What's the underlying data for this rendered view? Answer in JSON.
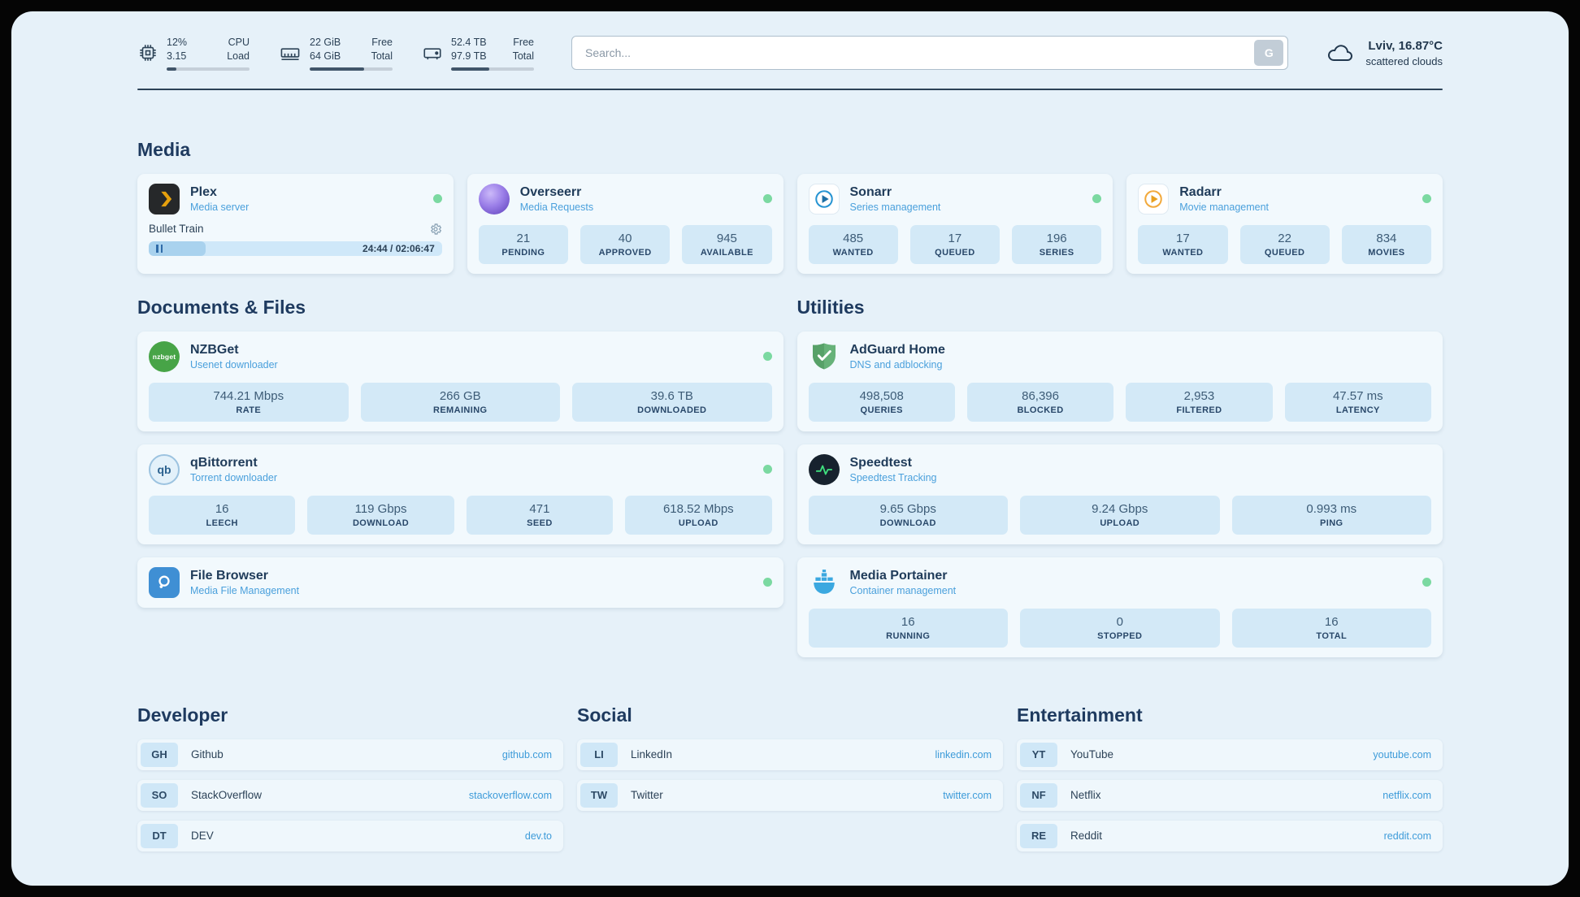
{
  "topbar": {
    "cpu": {
      "rows": [
        {
          "value": "12%",
          "label": "CPU"
        },
        {
          "value": "3.15",
          "label": "Load"
        }
      ],
      "bar_pct": 12
    },
    "ram": {
      "rows": [
        {
          "value": "22 GiB",
          "label": "Free"
        },
        {
          "value": "64 GiB",
          "label": "Total"
        }
      ],
      "bar_pct": 66
    },
    "disk": {
      "rows": [
        {
          "value": "52.4 TB",
          "label": "Free"
        },
        {
          "value": "97.9 TB",
          "label": "Total"
        }
      ],
      "bar_pct": 46
    },
    "search": {
      "placeholder": "Search...",
      "button_label": "G"
    },
    "weather": {
      "location": "Lviv, 16.87°C",
      "condition": "scattered clouds"
    }
  },
  "media": {
    "heading": "Media",
    "cards": {
      "plex": {
        "title": "Plex",
        "subtitle": "Media server",
        "now_playing": "Bullet Train",
        "time": "24:44 / 02:06:47",
        "progress_pct": 19.5
      },
      "overseerr": {
        "title": "Overseerr",
        "subtitle": "Media Requests",
        "stats": [
          {
            "value": "21",
            "label": "PENDING"
          },
          {
            "value": "40",
            "label": "APPROVED"
          },
          {
            "value": "945",
            "label": "AVAILABLE"
          }
        ]
      },
      "sonarr": {
        "title": "Sonarr",
        "subtitle": "Series management",
        "stats": [
          {
            "value": "485",
            "label": "WANTED"
          },
          {
            "value": "17",
            "label": "QUEUED"
          },
          {
            "value": "196",
            "label": "SERIES"
          }
        ]
      },
      "radarr": {
        "title": "Radarr",
        "subtitle": "Movie management",
        "stats": [
          {
            "value": "17",
            "label": "WANTED"
          },
          {
            "value": "22",
            "label": "QUEUED"
          },
          {
            "value": "834",
            "label": "MOVIES"
          }
        ]
      }
    }
  },
  "documents": {
    "heading": "Documents & Files",
    "cards": {
      "nzbget": {
        "title": "NZBGet",
        "subtitle": "Usenet downloader",
        "icon_text": "nzbget",
        "stats": [
          {
            "value": "744.21 Mbps",
            "label": "RATE"
          },
          {
            "value": "266 GB",
            "label": "REMAINING"
          },
          {
            "value": "39.6 TB",
            "label": "DOWNLOADED"
          }
        ]
      },
      "qbittorrent": {
        "title": "qBittorrent",
        "subtitle": "Torrent downloader",
        "icon_text": "qb",
        "stats": [
          {
            "value": "16",
            "label": "LEECH"
          },
          {
            "value": "119 Gbps",
            "label": "DOWNLOAD"
          },
          {
            "value": "471",
            "label": "SEED"
          },
          {
            "value": "618.52 Mbps",
            "label": "UPLOAD"
          }
        ]
      },
      "filebrowser": {
        "title": "File Browser",
        "subtitle": "Media File Management"
      }
    }
  },
  "utilities": {
    "heading": "Utilities",
    "cards": {
      "adguard": {
        "title": "AdGuard Home",
        "subtitle": "DNS and adblocking",
        "stats": [
          {
            "value": "498,508",
            "label": "QUERIES"
          },
          {
            "value": "86,396",
            "label": "BLOCKED"
          },
          {
            "value": "2,953",
            "label": "FILTERED"
          },
          {
            "value": "47.57 ms",
            "label": "LATENCY"
          }
        ]
      },
      "speedtest": {
        "title": "Speedtest",
        "subtitle": "Speedtest Tracking",
        "stats": [
          {
            "value": "9.65 Gbps",
            "label": "DOWNLOAD"
          },
          {
            "value": "9.24 Gbps",
            "label": "UPLOAD"
          },
          {
            "value": "0.993 ms",
            "label": "PING"
          }
        ]
      },
      "portainer": {
        "title": "Media Portainer",
        "subtitle": "Container management",
        "stats": [
          {
            "value": "16",
            "label": "RUNNING"
          },
          {
            "value": "0",
            "label": "STOPPED"
          },
          {
            "value": "16",
            "label": "TOTAL"
          }
        ]
      }
    }
  },
  "bookmarks": {
    "developer": {
      "heading": "Developer",
      "links": [
        {
          "abbr": "GH",
          "name": "Github",
          "url": "github.com"
        },
        {
          "abbr": "SO",
          "name": "StackOverflow",
          "url": "stackoverflow.com"
        },
        {
          "abbr": "DT",
          "name": "DEV",
          "url": "dev.to"
        }
      ]
    },
    "social": {
      "heading": "Social",
      "links": [
        {
          "abbr": "LI",
          "name": "LinkedIn",
          "url": "linkedin.com"
        },
        {
          "abbr": "TW",
          "name": "Twitter",
          "url": "twitter.com"
        }
      ]
    },
    "entertainment": {
      "heading": "Entertainment",
      "links": [
        {
          "abbr": "YT",
          "name": "YouTube",
          "url": "youtube.com"
        },
        {
          "abbr": "NF",
          "name": "Netflix",
          "url": "netflix.com"
        },
        {
          "abbr": "RE",
          "name": "Reddit",
          "url": "reddit.com"
        }
      ]
    }
  }
}
